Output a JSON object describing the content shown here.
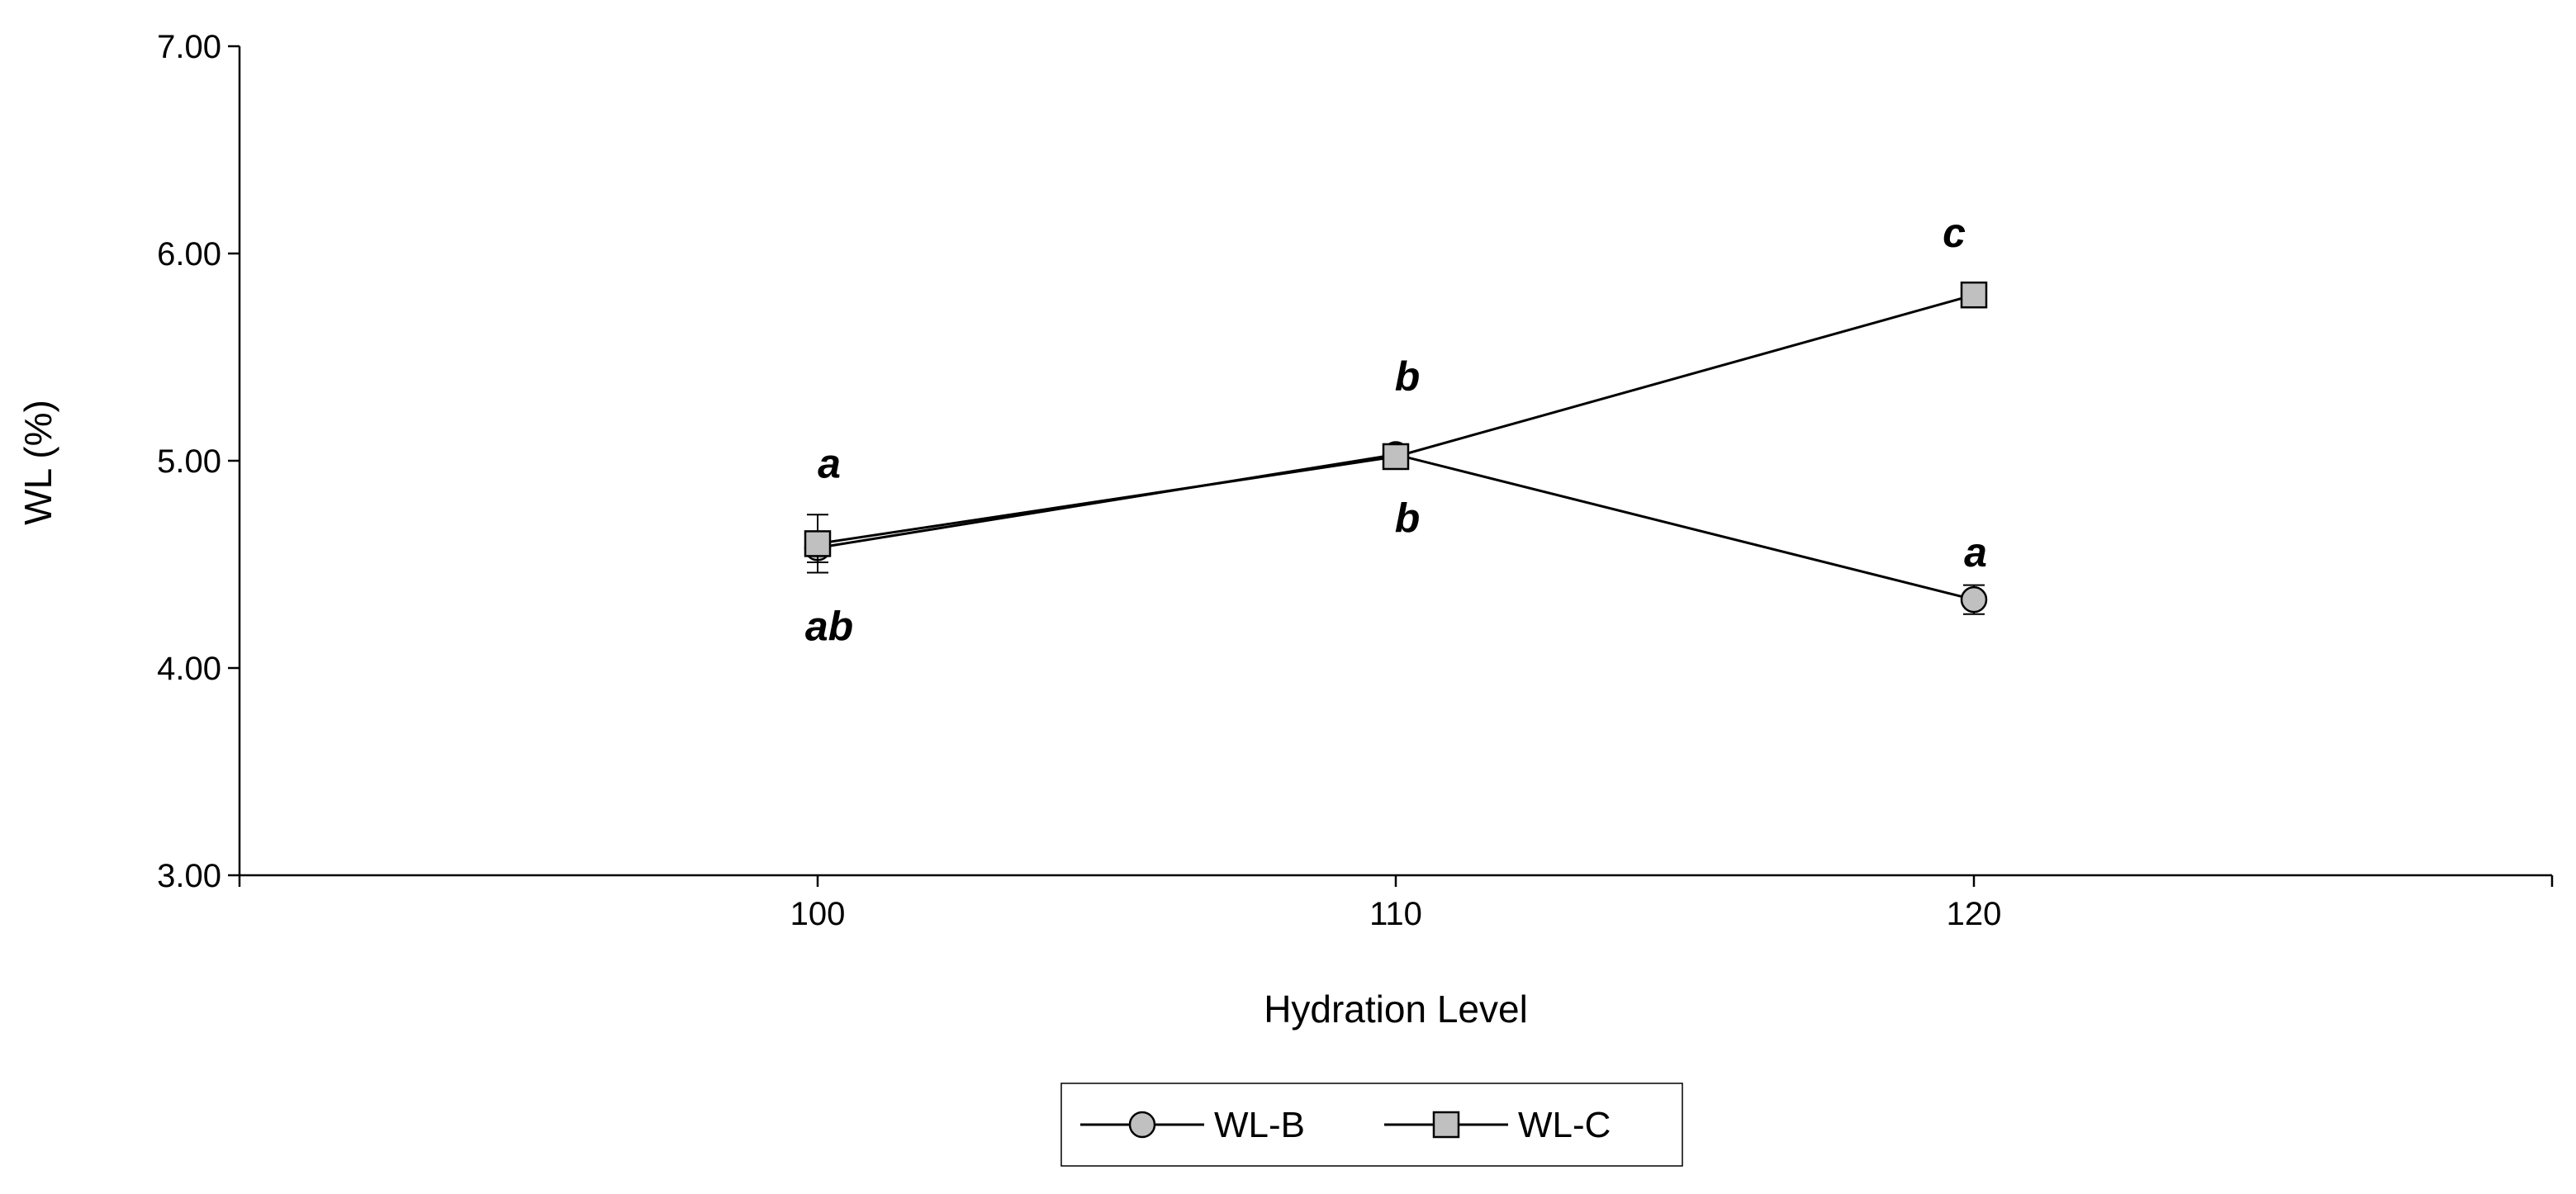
{
  "chart_data": {
    "type": "line",
    "xlabel": "Hydration Level",
    "ylabel": "WL (%)",
    "x": [
      100,
      110,
      120
    ],
    "x_ticks": [
      "100",
      "110",
      "120"
    ],
    "xlim": [
      90,
      130
    ],
    "ylim": [
      3.0,
      7.0
    ],
    "y_ticks": [
      "3.00",
      "4.00",
      "5.00",
      "6.00",
      "7.00"
    ],
    "grid": false,
    "legend_position": "bottom",
    "series": [
      {
        "name": "WL-B",
        "marker": "circle",
        "values": [
          4.58,
          5.03,
          4.33
        ],
        "errors": [
          0.07,
          0.04,
          0.07
        ],
        "letters": [
          "ab",
          "b",
          "a"
        ],
        "letter_position": [
          "below",
          "below",
          "above"
        ]
      },
      {
        "name": "WL-C",
        "marker": "square",
        "values": [
          4.6,
          5.02,
          5.8
        ],
        "errors": [
          0.14,
          0.04,
          0.06
        ],
        "letters": [
          "a",
          "b",
          "c"
        ],
        "letter_position": [
          "above",
          "above",
          "above"
        ]
      }
    ],
    "colors": {
      "line": "#000000",
      "marker_fill": "#c0c0c0",
      "marker_stroke": "#000000"
    }
  }
}
